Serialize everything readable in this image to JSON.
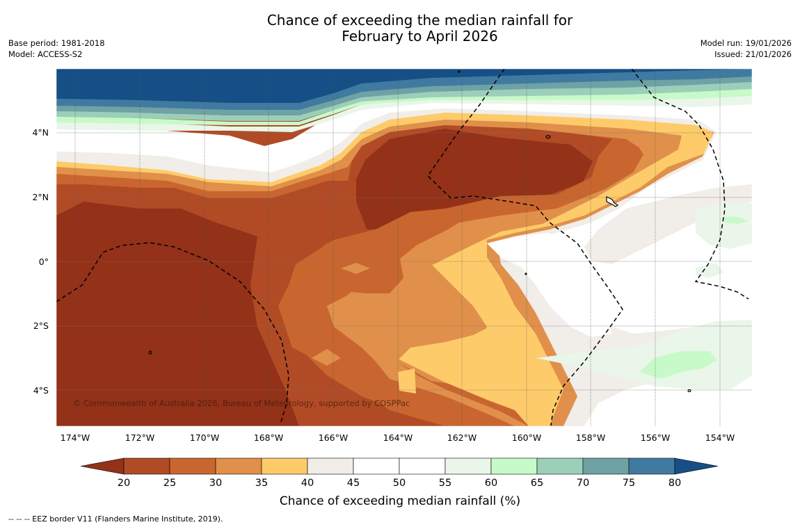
{
  "title": {
    "line1": "Chance of exceeding the median rainfall for",
    "line2": "February to April 2026"
  },
  "meta": {
    "base_period": "Base period: 1981-2018",
    "model": "Model: ACCESS-S2",
    "model_run": "Model run: 19/01/2026",
    "issued": "Issued: 21/01/2026"
  },
  "map": {
    "lat_labels": [
      "4°N",
      "2°N",
      "0°",
      "2°S",
      "4°S"
    ],
    "lon_labels": [
      "174°W",
      "172°W",
      "170°W",
      "168°W",
      "166°W",
      "164°W",
      "162°W",
      "160°W",
      "158°W",
      "156°W",
      "154°W"
    ],
    "copyright": "© Commonwealth of Australia 2026, Bureau of Meteorology, supported by COSPPac"
  },
  "legend": {
    "ticks": [
      "20",
      "25",
      "30",
      "35",
      "40",
      "45",
      "50",
      "55",
      "60",
      "65",
      "70",
      "75",
      "80"
    ],
    "colors": [
      "#933119",
      "#b14b25",
      "#c9662f",
      "#e0904a",
      "#fecb6a",
      "#f1ede8",
      "#ffffff",
      "#ffffff",
      "#e9f6e9",
      "#c7fac8",
      "#9ccfba",
      "#6fa2a4",
      "#417aa0",
      "#154f85"
    ],
    "label": "Chance of exceeding median rainfall (%)"
  },
  "footer": {
    "eez_note": "--  --  -- EEZ border V11 (Flanders Marine Institute, 2019)."
  }
}
